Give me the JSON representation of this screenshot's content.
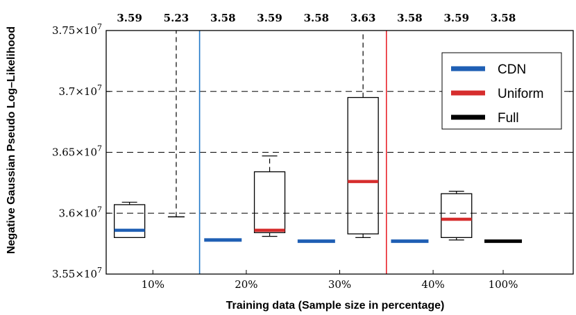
{
  "chart_data": {
    "type": "box",
    "title": "",
    "xlabel": "Training data (Sample size in percentage)",
    "ylabel": "Negative Gaussian Pseudo Log–Likelihood",
    "ylim": [
      35500000,
      37500000
    ],
    "y_ticks": [
      {
        "value": 35500000,
        "mant": "3.55",
        "exp": "7"
      },
      {
        "value": 36000000,
        "mant": "3.6",
        "exp": "7"
      },
      {
        "value": 36500000,
        "mant": "3.65",
        "exp": "7"
      },
      {
        "value": 37000000,
        "mant": "3.7",
        "exp": "7"
      },
      {
        "value": 37500000,
        "mant": "3.75",
        "exp": "7"
      }
    ],
    "y_tick_times": "×10",
    "grid_lines": [
      36000000,
      36500000,
      37000000
    ],
    "x_groups": [
      "10%",
      "20%",
      "30%",
      "40%",
      "100%"
    ],
    "top_labels": [
      "3.59",
      "5.23",
      "3.58",
      "3.59",
      "3.58",
      "3.63",
      "3.58",
      "3.59",
      "3.58"
    ],
    "boxes": [
      {
        "group": "10%",
        "series": "CDN",
        "whislo": 35800000,
        "q1": 35800000,
        "med": 35860000,
        "q3": 36070000,
        "whishi": 36090000,
        "whisker_clipped": false
      },
      {
        "group": "10%",
        "series": "Uniform",
        "whislo": 35970000,
        "q1": 35970000,
        "med": 35970000,
        "q3": 35970000,
        "whishi": 37500000,
        "whisker_clipped": true
      },
      {
        "group": "20%",
        "series": "CDN",
        "whislo": 35780000,
        "q1": 35780000,
        "med": 35780000,
        "q3": 35780000,
        "whishi": 35780000,
        "whisker_clipped": false
      },
      {
        "group": "20%",
        "series": "Uniform",
        "whislo": 35810000,
        "q1": 35840000,
        "med": 35860000,
        "q3": 36340000,
        "whishi": 36470000,
        "whisker_clipped": false
      },
      {
        "group": "30%",
        "series": "CDN",
        "whislo": 35770000,
        "q1": 35770000,
        "med": 35770000,
        "q3": 35770000,
        "whishi": 35770000,
        "whisker_clipped": false
      },
      {
        "group": "30%",
        "series": "Uniform",
        "whislo": 35800000,
        "q1": 35830000,
        "med": 36260000,
        "q3": 36950000,
        "whishi": 37500000,
        "whisker_clipped": true
      },
      {
        "group": "40%",
        "series": "CDN",
        "whislo": 35770000,
        "q1": 35770000,
        "med": 35770000,
        "q3": 35770000,
        "whishi": 35770000,
        "whisker_clipped": false
      },
      {
        "group": "40%",
        "series": "Uniform",
        "whislo": 35780000,
        "q1": 35800000,
        "med": 35950000,
        "q3": 36160000,
        "whishi": 36180000,
        "whisker_clipped": false
      },
      {
        "group": "100%",
        "series": "Full",
        "whislo": 35770000,
        "q1": 35770000,
        "med": 35770000,
        "q3": 35770000,
        "whishi": 35770000,
        "whisker_clipped": false
      }
    ],
    "series": [
      {
        "name": "CDN",
        "color": "#1f5fb4"
      },
      {
        "name": "Uniform",
        "color": "#d62d2d"
      },
      {
        "name": "Full",
        "color": "#000000"
      }
    ],
    "separators": [
      {
        "after_group": "10%",
        "color": "#1f77c8"
      },
      {
        "after_group": "30%",
        "color": "#e8242b"
      }
    ],
    "legend_position": "top-right"
  }
}
